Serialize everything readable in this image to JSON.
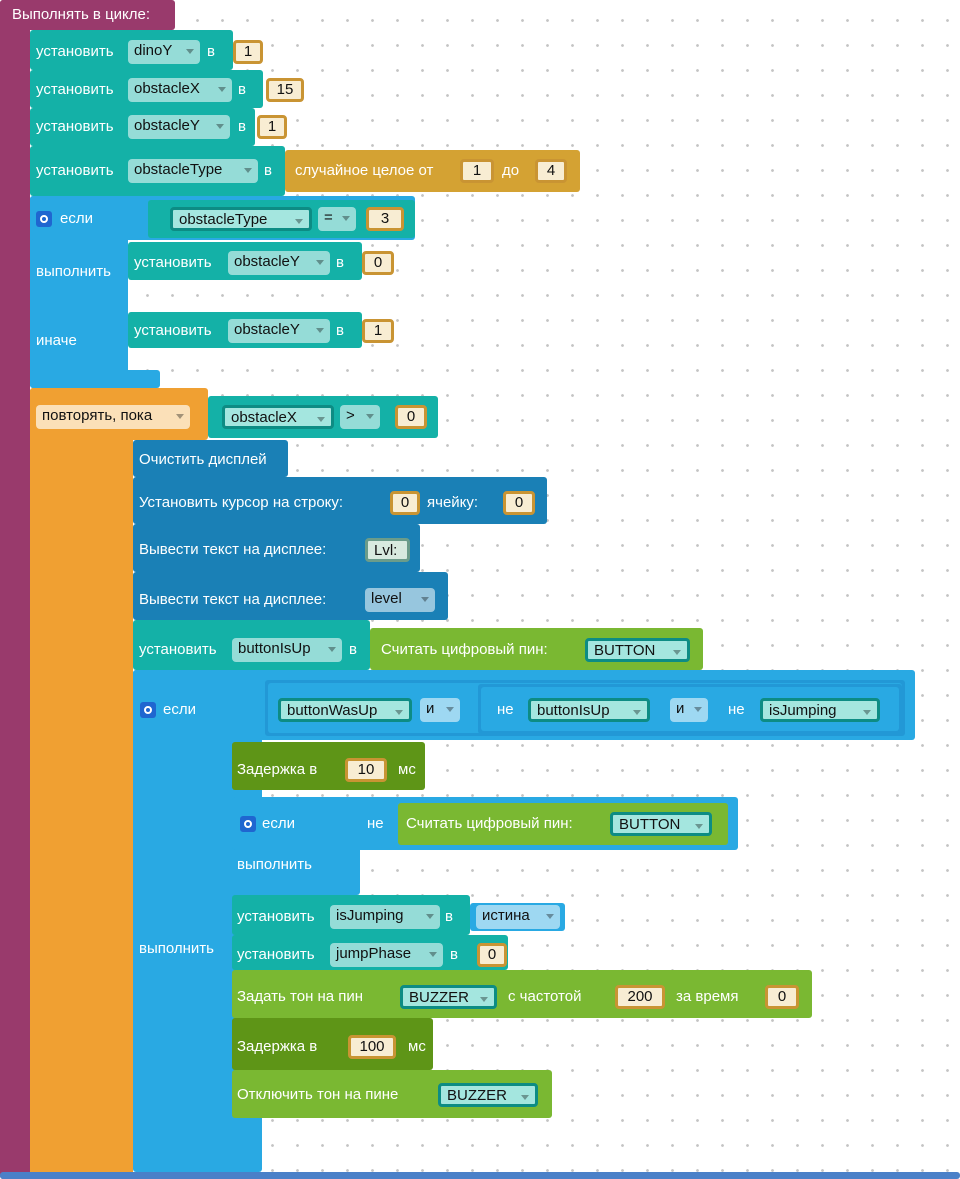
{
  "blocks": [
    [
      "Выполнять в цикле:"
    ],
    [
      "установить",
      "dinoY",
      "в",
      1
    ],
    [
      "установить",
      "obstacleX",
      "в",
      15
    ],
    [
      "установить",
      "obstacleY",
      "в",
      1
    ],
    [
      "установить",
      "obstacleType",
      "в",
      "случайное целое от",
      1,
      "до",
      4
    ],
    [
      "если",
      "obstacleType",
      "=",
      3
    ],
    [
      "выполнить",
      "установить",
      "obstacleY",
      "в",
      0
    ],
    [
      "иначе",
      "установить",
      "obstacleY",
      "в",
      1
    ],
    [
      "повторять, пока",
      "obstacleX",
      ">",
      0
    ],
    [
      "Очистить дисплей"
    ],
    [
      "Установить курсор на строку:",
      0,
      "ячейку:",
      0
    ],
    [
      "Вывести текст на дисплее:",
      "Lvl:"
    ],
    [
      "Вывести текст на дисплее:",
      "level"
    ],
    [
      "установить",
      "buttonIsUp",
      "в",
      "Считать цифровый пин:",
      "BUTTON"
    ],
    [
      "если",
      "buttonWasUp",
      "и",
      "не",
      "buttonIsUp",
      "и",
      "не",
      "isJumping"
    ],
    [
      "выполнить"
    ],
    [
      "Задержка в",
      10,
      "мс"
    ],
    [
      "если",
      "не",
      "Считать цифровый пин:",
      "BUTTON"
    ],
    [
      "выполнить"
    ],
    [
      "установить",
      "isJumping",
      "в",
      "истина"
    ],
    [
      "установить",
      "jumpPhase",
      "в",
      0
    ],
    [
      "Задать тон на пин",
      "BUZZER",
      "с частотой",
      200,
      "за время",
      0
    ],
    [
      "Задержка в",
      100,
      "мс"
    ],
    [
      "Отключить тон на пине",
      "BUZZER"
    ]
  ]
}
